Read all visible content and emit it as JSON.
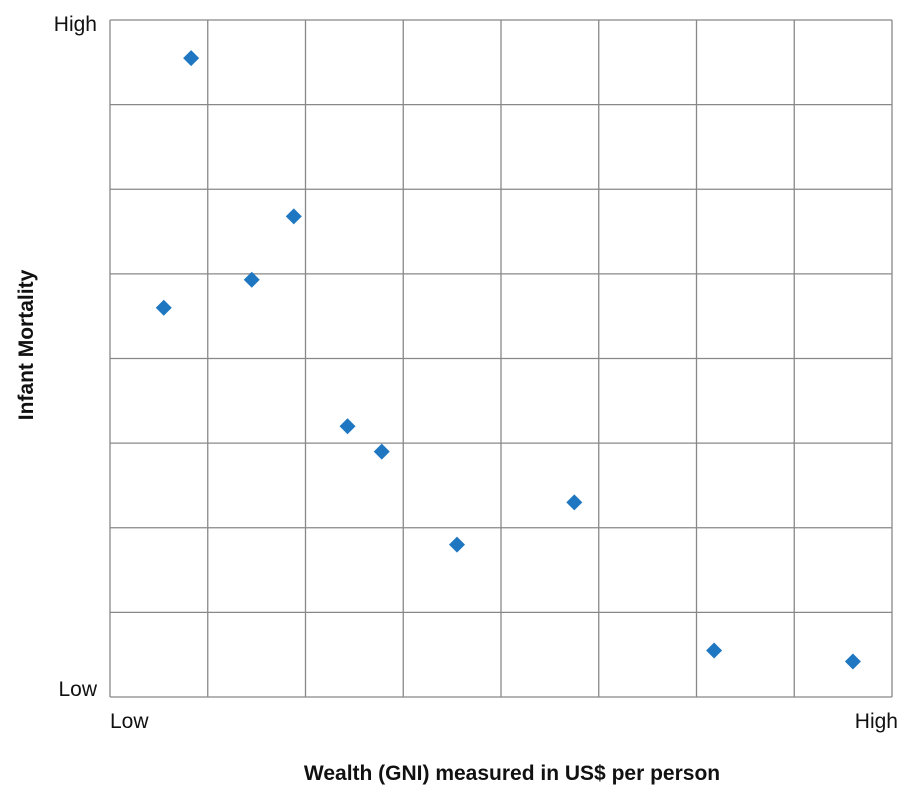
{
  "chart_data": {
    "type": "scatter",
    "title": "",
    "xlabel": "Wealth (GNI) measured in US$ per person",
    "ylabel": "Infant Mortality",
    "x_tick_labels": {
      "low": "Low",
      "high": "High"
    },
    "y_tick_labels": {
      "low": "Low",
      "high": "High"
    },
    "xlim": [
      0,
      8
    ],
    "ylim": [
      0,
      8
    ],
    "grid": true,
    "legend": "none",
    "marker": "diamond",
    "colors": {
      "point": "#1f77c2",
      "grid": "#888888"
    },
    "series": [
      {
        "x": [
          0.83,
          0.55,
          1.45,
          1.88,
          2.43,
          2.78,
          3.55,
          4.75,
          6.18,
          7.6
        ],
        "y": [
          7.55,
          4.6,
          4.93,
          5.68,
          3.2,
          2.9,
          1.8,
          2.3,
          0.55,
          0.42
        ]
      }
    ]
  }
}
